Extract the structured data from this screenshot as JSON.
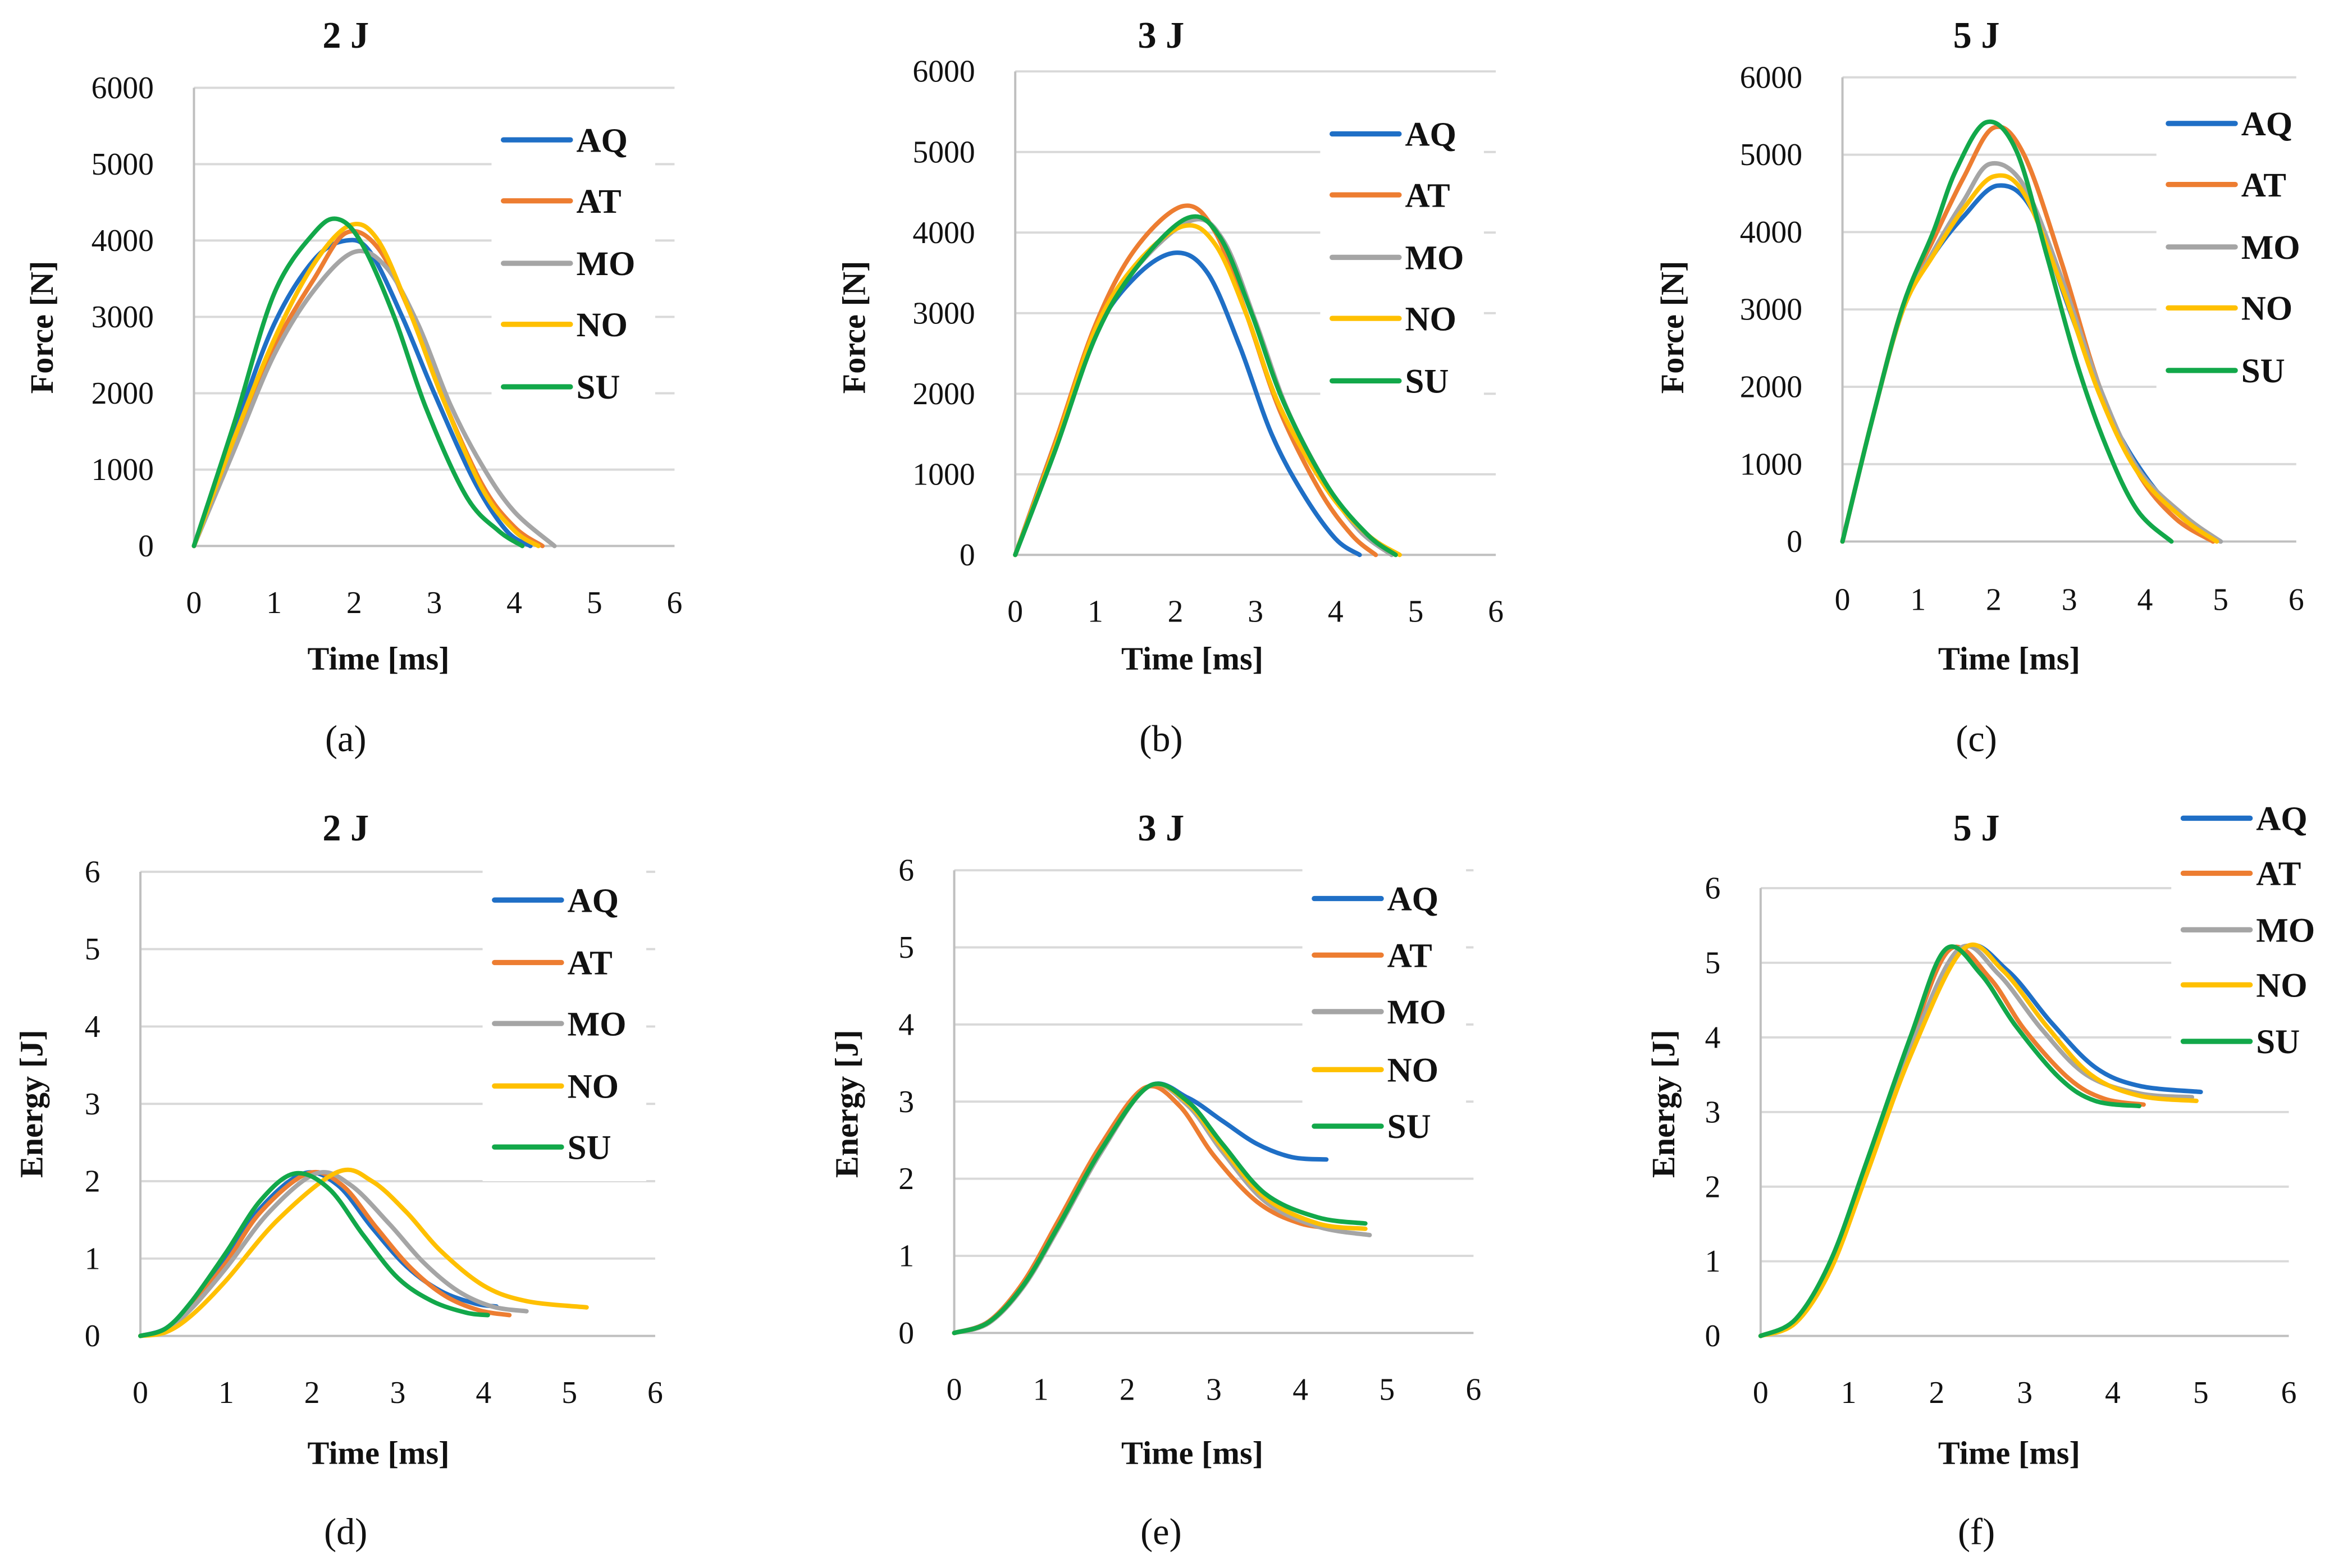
{
  "colors": {
    "AQ": "#1f6fc6",
    "AT": "#ed7d31",
    "MO": "#a5a5a5",
    "NO": "#ffc000",
    "SU": "#12a84a",
    "grid": "#d9d9d9",
    "axis": "#bfbfbf"
  },
  "chart_data": [
    {
      "type": "line",
      "panel": "(a)",
      "title": "2 J",
      "xlabel": "Time [ms]",
      "ylabel": "Force [N]",
      "xlim": [
        0,
        6
      ],
      "ylim": [
        0,
        6000
      ],
      "xticks": [
        "0",
        "1",
        "2",
        "3",
        "4",
        "5",
        "6"
      ],
      "yticks": [
        "0",
        "1000",
        "2000",
        "3000",
        "4000",
        "5000",
        "6000"
      ],
      "grid": true,
      "legend_position": "top-right",
      "series": [
        {
          "name": "AQ",
          "x": [
            0,
            0.5,
            1,
            1.5,
            1.9,
            2.2,
            2.6,
            3,
            3.5,
            3.9,
            4.2
          ],
          "y": [
            0,
            1500,
            2900,
            3750,
            4000,
            3850,
            3000,
            2000,
            850,
            200,
            0
          ]
        },
        {
          "name": "AT",
          "x": [
            0,
            0.5,
            1,
            1.5,
            1.9,
            2.3,
            2.7,
            3.1,
            3.6,
            4,
            4.35
          ],
          "y": [
            0,
            1350,
            2600,
            3500,
            4100,
            3900,
            3050,
            1950,
            800,
            250,
            0
          ]
        },
        {
          "name": "MO",
          "x": [
            0,
            0.5,
            1,
            1.5,
            2,
            2.4,
            2.8,
            3.2,
            3.6,
            4,
            4.5
          ],
          "y": [
            0,
            1250,
            2500,
            3350,
            3850,
            3650,
            2900,
            1850,
            1050,
            450,
            0
          ]
        },
        {
          "name": "NO",
          "x": [
            0,
            0.5,
            1,
            1.5,
            1.95,
            2.3,
            2.7,
            3.1,
            3.6,
            4,
            4.3
          ],
          "y": [
            0,
            1400,
            2700,
            3700,
            4200,
            4000,
            3050,
            1950,
            750,
            200,
            0
          ]
        },
        {
          "name": "SU",
          "x": [
            0,
            0.5,
            1,
            1.5,
            1.8,
            2.1,
            2.5,
            2.9,
            3.4,
            3.8,
            4.1
          ],
          "y": [
            0,
            1600,
            3300,
            4100,
            4280,
            3950,
            3000,
            1800,
            650,
            200,
            0
          ]
        }
      ]
    },
    {
      "type": "line",
      "panel": "(b)",
      "title": "3 J",
      "xlabel": "Time [ms]",
      "ylabel": "Force [N]",
      "xlim": [
        0,
        6
      ],
      "ylim": [
        0,
        6000
      ],
      "xticks": [
        "0",
        "1",
        "2",
        "3",
        "4",
        "5",
        "6"
      ],
      "yticks": [
        "0",
        "1000",
        "2000",
        "3000",
        "4000",
        "5000",
        "6000"
      ],
      "grid": true,
      "legend_position": "top-right",
      "series": [
        {
          "name": "AQ",
          "x": [
            0,
            0.5,
            1,
            1.5,
            2,
            2.4,
            2.8,
            3.2,
            3.6,
            4,
            4.3
          ],
          "y": [
            0,
            1400,
            2750,
            3450,
            3750,
            3500,
            2600,
            1500,
            750,
            200,
            0
          ]
        },
        {
          "name": "AT",
          "x": [
            0,
            0.5,
            1,
            1.5,
            2.1,
            2.5,
            2.9,
            3.3,
            3.8,
            4.2,
            4.5
          ],
          "y": [
            0,
            1400,
            2850,
            3800,
            4330,
            4000,
            2950,
            1800,
            800,
            250,
            0
          ]
        },
        {
          "name": "MO",
          "x": [
            0,
            0.5,
            1,
            1.5,
            2.2,
            2.6,
            3,
            3.4,
            3.9,
            4.3,
            4.7
          ],
          "y": [
            0,
            1300,
            2700,
            3550,
            4150,
            3900,
            2900,
            1800,
            850,
            300,
            0
          ]
        },
        {
          "name": "NO",
          "x": [
            0,
            0.5,
            1,
            1.5,
            2.1,
            2.5,
            2.9,
            3.3,
            3.9,
            4.4,
            4.8
          ],
          "y": [
            0,
            1350,
            2800,
            3600,
            4080,
            3850,
            2950,
            1850,
            800,
            250,
            0
          ]
        },
        {
          "name": "SU",
          "x": [
            0,
            0.5,
            1,
            1.5,
            2.15,
            2.55,
            2.95,
            3.35,
            3.9,
            4.4,
            4.75
          ],
          "y": [
            0,
            1300,
            2700,
            3550,
            4180,
            3950,
            3000,
            1900,
            850,
            250,
            0
          ]
        }
      ]
    },
    {
      "type": "line",
      "panel": "(c)",
      "title": "5 J",
      "xlabel": "Time [ms]",
      "ylabel": "Force [N]",
      "xlim": [
        0,
        6
      ],
      "ylim": [
        0,
        6000
      ],
      "xticks": [
        "0",
        "1",
        "2",
        "3",
        "4",
        "5",
        "6"
      ],
      "yticks": [
        "0",
        "1000",
        "2000",
        "3000",
        "4000",
        "5000",
        "6000"
      ],
      "grid": true,
      "legend_position": "top-right",
      "series": [
        {
          "name": "AQ",
          "x": [
            0,
            0.4,
            0.8,
            1.2,
            1.6,
            2.05,
            2.5,
            3,
            3.5,
            4,
            4.5,
            5
          ],
          "y": [
            0,
            1600,
            3000,
            3700,
            4200,
            4600,
            4300,
            3000,
            1700,
            850,
            300,
            0
          ]
        },
        {
          "name": "AT",
          "x": [
            0,
            0.4,
            0.8,
            1.2,
            1.6,
            2,
            2.4,
            2.9,
            3.4,
            3.9,
            4.4,
            4.9
          ],
          "y": [
            0,
            1600,
            3050,
            3900,
            4700,
            5350,
            5000,
            3600,
            2000,
            900,
            300,
            0
          ]
        },
        {
          "name": "MO",
          "x": [
            0,
            0.4,
            0.8,
            1.2,
            1.6,
            1.95,
            2.4,
            2.9,
            3.4,
            3.9,
            4.5,
            5
          ],
          "y": [
            0,
            1600,
            3000,
            3750,
            4400,
            4880,
            4600,
            3400,
            2000,
            950,
            350,
            0
          ]
        },
        {
          "name": "NO",
          "x": [
            0,
            0.4,
            0.8,
            1.2,
            1.6,
            2,
            2.4,
            2.9,
            3.4,
            3.9,
            4.5,
            4.95
          ],
          "y": [
            0,
            1600,
            3000,
            3700,
            4300,
            4720,
            4500,
            3300,
            1900,
            900,
            300,
            0
          ]
        },
        {
          "name": "SU",
          "x": [
            0,
            0.4,
            0.8,
            1.2,
            1.5,
            1.9,
            2.3,
            2.7,
            3.1,
            3.5,
            3.9,
            4.35
          ],
          "y": [
            0,
            1600,
            3050,
            4000,
            4800,
            5420,
            5050,
            3700,
            2300,
            1200,
            400,
            0
          ]
        }
      ]
    },
    {
      "type": "line",
      "panel": "(d)",
      "title": "2 J",
      "xlabel": "Time [ms]",
      "ylabel": "Energy [J]",
      "xlim": [
        0,
        6
      ],
      "ylim": [
        0,
        6
      ],
      "xticks": [
        "0",
        "1",
        "2",
        "3",
        "4",
        "5",
        "6"
      ],
      "yticks": [
        "0",
        "1",
        "2",
        "3",
        "4",
        "5",
        "6"
      ],
      "grid": true,
      "legend_position": "top-right",
      "series": [
        {
          "name": "AQ",
          "x": [
            0,
            0.3,
            0.6,
            1,
            1.4,
            1.9,
            2.3,
            2.7,
            3.1,
            3.5,
            3.9,
            4.15
          ],
          "y": [
            0,
            0.1,
            0.42,
            1.0,
            1.65,
            2.1,
            1.95,
            1.4,
            0.9,
            0.58,
            0.42,
            0.38
          ]
        },
        {
          "name": "AT",
          "x": [
            0,
            0.3,
            0.6,
            1,
            1.4,
            1.95,
            2.35,
            2.75,
            3.15,
            3.55,
            3.95,
            4.3
          ],
          "y": [
            0,
            0.09,
            0.4,
            0.95,
            1.6,
            2.1,
            1.95,
            1.4,
            0.88,
            0.52,
            0.33,
            0.27
          ]
        },
        {
          "name": "MO",
          "x": [
            0,
            0.3,
            0.6,
            1,
            1.5,
            2.05,
            2.45,
            2.9,
            3.3,
            3.7,
            4.1,
            4.5
          ],
          "y": [
            0,
            0.08,
            0.36,
            0.88,
            1.6,
            2.1,
            1.95,
            1.45,
            0.95,
            0.58,
            0.38,
            0.32
          ]
        },
        {
          "name": "NO",
          "x": [
            0,
            0.3,
            0.6,
            1,
            1.6,
            2.3,
            2.7,
            3.1,
            3.5,
            4,
            4.5,
            5.2
          ],
          "y": [
            0,
            0.05,
            0.27,
            0.72,
            1.5,
            2.12,
            2.0,
            1.6,
            1.1,
            0.65,
            0.45,
            0.37
          ]
        },
        {
          "name": "SU",
          "x": [
            0,
            0.3,
            0.6,
            1,
            1.4,
            1.8,
            2.2,
            2.6,
            3,
            3.4,
            3.8,
            4.05
          ],
          "y": [
            0,
            0.1,
            0.45,
            1.08,
            1.75,
            2.1,
            1.9,
            1.3,
            0.75,
            0.45,
            0.3,
            0.27
          ]
        }
      ]
    },
    {
      "type": "line",
      "panel": "(e)",
      "title": "3 J",
      "xlabel": "Time [ms]",
      "ylabel": "Energy [J]",
      "xlim": [
        0,
        6
      ],
      "ylim": [
        0,
        6
      ],
      "xticks": [
        "0",
        "1",
        "2",
        "3",
        "4",
        "5",
        "6"
      ],
      "yticks": [
        "0",
        "1",
        "2",
        "3",
        "4",
        "5",
        "6"
      ],
      "grid": true,
      "legend_position": "top-right",
      "series": [
        {
          "name": "AQ",
          "x": [
            0,
            0.4,
            0.8,
            1.2,
            1.7,
            2.25,
            2.7,
            3.1,
            3.5,
            3.9,
            4.3
          ],
          "y": [
            0,
            0.15,
            0.65,
            1.4,
            2.4,
            3.2,
            3.05,
            2.75,
            2.45,
            2.28,
            2.25
          ]
        },
        {
          "name": "AT",
          "x": [
            0,
            0.4,
            0.8,
            1.2,
            1.7,
            2.2,
            2.6,
            3,
            3.5,
            4,
            4.5
          ],
          "y": [
            0,
            0.15,
            0.66,
            1.45,
            2.45,
            3.18,
            2.95,
            2.3,
            1.7,
            1.42,
            1.35
          ]
        },
        {
          "name": "MO",
          "x": [
            0,
            0.4,
            0.8,
            1.2,
            1.7,
            2.25,
            2.7,
            3.1,
            3.6,
            4.2,
            4.8
          ],
          "y": [
            0,
            0.13,
            0.6,
            1.35,
            2.35,
            3.2,
            2.95,
            2.35,
            1.7,
            1.38,
            1.27
          ]
        },
        {
          "name": "NO",
          "x": [
            0,
            0.4,
            0.8,
            1.2,
            1.7,
            2.25,
            2.7,
            3.1,
            3.6,
            4.2,
            4.75
          ],
          "y": [
            0,
            0.14,
            0.62,
            1.38,
            2.38,
            3.2,
            2.98,
            2.4,
            1.75,
            1.42,
            1.35
          ]
        },
        {
          "name": "SU",
          "x": [
            0,
            0.4,
            0.8,
            1.2,
            1.7,
            2.25,
            2.7,
            3.1,
            3.6,
            4.2,
            4.75
          ],
          "y": [
            0,
            0.14,
            0.62,
            1.38,
            2.38,
            3.2,
            3.0,
            2.45,
            1.8,
            1.5,
            1.42
          ]
        }
      ]
    },
    {
      "type": "line",
      "panel": "(f)",
      "title": "5 J",
      "xlabel": "Time [ms]",
      "ylabel": "Energy [J]",
      "xlim": [
        0,
        6
      ],
      "ylim": [
        0,
        6
      ],
      "xticks": [
        "0",
        "1",
        "2",
        "3",
        "4",
        "5",
        "6"
      ],
      "yticks": [
        "0",
        "1",
        "2",
        "3",
        "4",
        "5",
        "6"
      ],
      "grid": true,
      "legend_position": "top-right",
      "series": [
        {
          "name": "AQ",
          "x": [
            0,
            0.4,
            0.8,
            1.2,
            1.7,
            2.3,
            2.8,
            3.3,
            3.8,
            4.3,
            5
          ],
          "y": [
            0,
            0.2,
            0.95,
            2.2,
            3.8,
            5.18,
            4.9,
            4.2,
            3.6,
            3.35,
            3.27
          ]
        },
        {
          "name": "AT",
          "x": [
            0,
            0.4,
            0.8,
            1.2,
            1.7,
            2.15,
            2.6,
            3.0,
            3.5,
            3.9,
            4.35
          ],
          "y": [
            0,
            0.22,
            1.0,
            2.3,
            3.95,
            5.18,
            4.8,
            4.1,
            3.45,
            3.18,
            3.1
          ]
        },
        {
          "name": "MO",
          "x": [
            0,
            0.4,
            0.8,
            1.2,
            1.7,
            2.25,
            2.7,
            3.2,
            3.7,
            4.3,
            4.9
          ],
          "y": [
            0,
            0.2,
            0.96,
            2.25,
            3.85,
            5.18,
            4.85,
            4.1,
            3.5,
            3.25,
            3.2
          ]
        },
        {
          "name": "NO",
          "x": [
            0,
            0.4,
            0.8,
            1.2,
            1.7,
            2.3,
            2.75,
            3.25,
            3.75,
            4.3,
            4.95
          ],
          "y": [
            0,
            0.18,
            0.9,
            2.15,
            3.75,
            5.18,
            4.9,
            4.15,
            3.5,
            3.22,
            3.15
          ]
        },
        {
          "name": "SU",
          "x": [
            0,
            0.4,
            0.8,
            1.2,
            1.7,
            2.1,
            2.5,
            2.9,
            3.4,
            3.8,
            4.3
          ],
          "y": [
            0,
            0.23,
            1.02,
            2.32,
            4.0,
            5.18,
            4.85,
            4.15,
            3.45,
            3.15,
            3.08
          ]
        }
      ]
    }
  ]
}
